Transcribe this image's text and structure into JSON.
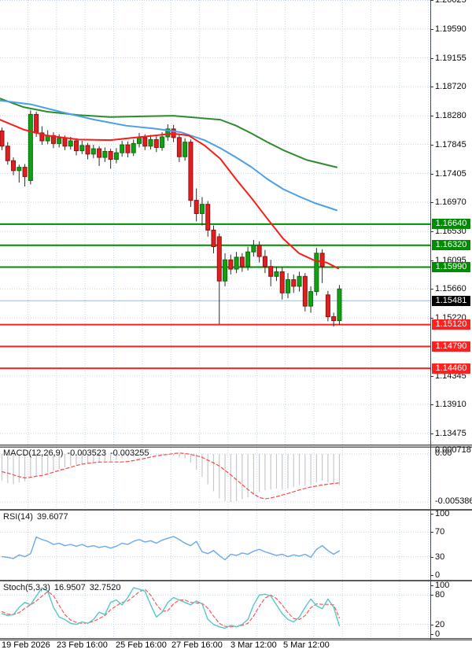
{
  "colors": {
    "grid": "#c3d5ea",
    "candle_up": "#14a014",
    "candle_up_border": "#0a6e0a",
    "candle_down": "#e02020",
    "candle_down_border": "#8f1010",
    "wick": "#2b2b2b",
    "ma_slow_green": "#2d8c2d",
    "ma_mid_blue": "#4aa0e8",
    "ma_fast_red": "#ff1a1a",
    "level_green": "#008c00",
    "level_red": "#ff2020",
    "current_price_line": "#9db8d2",
    "badge_black": "#000000",
    "macd_hist": "#c8c8c8",
    "macd_signal": "#ff4545",
    "rsi_line": "#6aaae8",
    "stoch_k": "#55c8c8",
    "stoch_d": "#ff5555"
  },
  "indicators": {
    "macd": {
      "name": "MACD(12,26,9)",
      "value_main": "-0.003523",
      "value_signal": "-0.003255",
      "scale_max": "0.000718",
      "scale_zero": "0.00",
      "scale_min": "-0.005386"
    },
    "rsi": {
      "name": "RSI(14)",
      "value": "39.6077",
      "scale": [
        "100",
        "70",
        "30",
        "0"
      ]
    },
    "stoch": {
      "name": "Stoch(5,3,3)",
      "value_k": "16.9507",
      "value_d": "32.7520",
      "scale": [
        "100",
        "80",
        "20",
        "0"
      ]
    }
  },
  "chart_data": {
    "type": "candlestick",
    "title": "",
    "x_labels": [
      "19 Feb 2026",
      "23 Feb 16:00",
      "25 Feb 16:00",
      "27 Feb 16:00",
      "3 Mar 12:00",
      "5 Mar 12:00"
    ],
    "price_axis": {
      "ticks": [
        "1.20025",
        "1.19590",
        "1.19155",
        "1.18720",
        "1.18280",
        "1.17845",
        "1.17405",
        "1.16970",
        "1.16530",
        "1.16095",
        "1.15660",
        "1.15220",
        "1.14345",
        "1.13910",
        "1.13475"
      ],
      "badges": [
        {
          "value": "1.16640",
          "type": "green"
        },
        {
          "value": "1.16320",
          "type": "green"
        },
        {
          "value": "1.15990",
          "type": "green"
        },
        {
          "value": "1.15481",
          "type": "black"
        },
        {
          "value": "1.15120",
          "type": "red"
        },
        {
          "value": "1.14790",
          "type": "red"
        },
        {
          "value": "1.14460",
          "type": "red"
        }
      ]
    },
    "levels": {
      "green": [
        1.1664,
        1.1632,
        1.1599
      ],
      "red": [
        1.1512,
        1.1479,
        1.1446
      ],
      "current": 1.15481
    },
    "candles": [
      [
        1.1805,
        1.181,
        1.1776,
        1.1782
      ],
      [
        1.1782,
        1.1788,
        1.1754,
        1.176
      ],
      [
        1.176,
        1.1765,
        1.1738,
        1.1745
      ],
      [
        1.1745,
        1.1754,
        1.1727,
        1.175
      ],
      [
        1.175,
        1.1755,
        1.1721,
        1.1736
      ],
      [
        1.173,
        1.1836,
        1.1724,
        1.183
      ],
      [
        1.183,
        1.1834,
        1.1796,
        1.1802
      ],
      [
        1.1802,
        1.1812,
        1.1784,
        1.179
      ],
      [
        1.179,
        1.1806,
        1.1785,
        1.1798
      ],
      [
        1.1798,
        1.1803,
        1.1779,
        1.1786
      ],
      [
        1.1786,
        1.18,
        1.178,
        1.1794
      ],
      [
        1.1794,
        1.1798,
        1.1776,
        1.1782
      ],
      [
        1.1782,
        1.1796,
        1.1777,
        1.179
      ],
      [
        1.179,
        1.1794,
        1.1768,
        1.1775
      ],
      [
        1.1775,
        1.179,
        1.177,
        1.1783
      ],
      [
        1.1783,
        1.1787,
        1.1762,
        1.177
      ],
      [
        1.177,
        1.1784,
        1.1764,
        1.1778
      ],
      [
        1.1778,
        1.1782,
        1.1752,
        1.1765
      ],
      [
        1.1765,
        1.178,
        1.1758,
        1.1774
      ],
      [
        1.1774,
        1.1778,
        1.1748,
        1.1762
      ],
      [
        1.1762,
        1.1779,
        1.1756,
        1.1772
      ],
      [
        1.1772,
        1.179,
        1.1766,
        1.1784
      ],
      [
        1.1784,
        1.1789,
        1.1765,
        1.1772
      ],
      [
        1.1772,
        1.1792,
        1.1767,
        1.1786
      ],
      [
        1.1786,
        1.1802,
        1.178,
        1.1795
      ],
      [
        1.1795,
        1.18,
        1.1776,
        1.1782
      ],
      [
        1.1782,
        1.1799,
        1.1777,
        1.1792
      ],
      [
        1.1792,
        1.1797,
        1.1773,
        1.178
      ],
      [
        1.178,
        1.1803,
        1.1775,
        1.1796
      ],
      [
        1.1796,
        1.1815,
        1.179,
        1.1808
      ],
      [
        1.1808,
        1.1814,
        1.1788,
        1.1795
      ],
      [
        1.1795,
        1.18,
        1.1758,
        1.1766
      ],
      [
        1.1766,
        1.1794,
        1.176,
        1.1788
      ],
      [
        1.1788,
        1.1792,
        1.169,
        1.17
      ],
      [
        1.17,
        1.1718,
        1.1668,
        1.168
      ],
      [
        1.168,
        1.1705,
        1.1662,
        1.1694
      ],
      [
        1.1694,
        1.1699,
        1.1645,
        1.1655
      ],
      [
        1.1655,
        1.1662,
        1.162,
        1.163
      ],
      [
        1.1645,
        1.165,
        1.1513,
        1.1578
      ],
      [
        1.1578,
        1.162,
        1.157,
        1.161
      ],
      [
        1.161,
        1.1618,
        1.1588,
        1.1596
      ],
      [
        1.1596,
        1.1622,
        1.159,
        1.1614
      ],
      [
        1.1614,
        1.162,
        1.1592,
        1.16
      ],
      [
        1.16,
        1.163,
        1.1594,
        1.1622
      ],
      [
        1.1622,
        1.164,
        1.1615,
        1.1632
      ],
      [
        1.1632,
        1.1638,
        1.1606,
        1.1615
      ],
      [
        1.1615,
        1.1625,
        1.159,
        1.16
      ],
      [
        1.16,
        1.161,
        1.157,
        1.1585
      ],
      [
        1.1585,
        1.16,
        1.1578,
        1.1592
      ],
      [
        1.1592,
        1.1598,
        1.155,
        1.156
      ],
      [
        1.156,
        1.159,
        1.1552,
        1.158
      ],
      [
        1.158,
        1.1588,
        1.156,
        1.157
      ],
      [
        1.157,
        1.1592,
        1.1562,
        1.1585
      ],
      [
        1.1585,
        1.159,
        1.1532,
        1.154
      ],
      [
        1.154,
        1.157,
        1.153,
        1.1562
      ],
      [
        1.1562,
        1.1628,
        1.1556,
        1.162
      ],
      [
        1.162,
        1.1626,
        1.1575,
        1.16
      ],
      [
        1.1557,
        1.1563,
        1.1517,
        1.1524
      ],
      [
        1.1524,
        1.153,
        1.1509,
        1.1518
      ],
      [
        1.1518,
        1.1572,
        1.1512,
        1.1566
      ]
    ],
    "ma": {
      "slow_green": [
        [
          0,
          1.1854
        ],
        [
          30,
          1.1841
        ],
        [
          60,
          1.1834
        ],
        [
          100,
          1.1829
        ],
        [
          140,
          1.1826
        ],
        [
          180,
          1.1827
        ],
        [
          220,
          1.1828
        ],
        [
          260,
          1.1824
        ],
        [
          280,
          1.1822
        ],
        [
          300,
          1.1813
        ],
        [
          320,
          1.1801
        ],
        [
          340,
          1.1788
        ],
        [
          360,
          1.1776
        ],
        [
          390,
          1.1761
        ],
        [
          428,
          1.175
        ]
      ],
      "mid_blue": [
        [
          0,
          1.1851
        ],
        [
          40,
          1.1845
        ],
        [
          80,
          1.1833
        ],
        [
          120,
          1.1822
        ],
        [
          160,
          1.1813
        ],
        [
          200,
          1.1808
        ],
        [
          230,
          1.1803
        ],
        [
          260,
          1.1791
        ],
        [
          280,
          1.1779
        ],
        [
          300,
          1.1765
        ],
        [
          320,
          1.175
        ],
        [
          340,
          1.1732
        ],
        [
          360,
          1.1717
        ],
        [
          380,
          1.1706
        ],
        [
          400,
          1.1696
        ],
        [
          428,
          1.1685
        ]
      ],
      "fast_red": [
        [
          0,
          1.1822
        ],
        [
          30,
          1.1807
        ],
        [
          60,
          1.1798
        ],
        [
          100,
          1.1792
        ],
        [
          140,
          1.1791
        ],
        [
          180,
          1.1796
        ],
        [
          220,
          1.1801
        ],
        [
          240,
          1.1798
        ],
        [
          260,
          1.1783
        ],
        [
          280,
          1.1763
        ],
        [
          300,
          1.1732
        ],
        [
          320,
          1.1703
        ],
        [
          340,
          1.1672
        ],
        [
          360,
          1.1642
        ],
        [
          380,
          1.162
        ],
        [
          400,
          1.1609
        ],
        [
          415,
          1.1606
        ],
        [
          430,
          1.1597
        ]
      ]
    },
    "macd": {
      "range": [
        -0.005386,
        0.000718
      ],
      "hist": [
        -0.003,
        -0.0033,
        -0.0034,
        -0.0032,
        -0.0031,
        -0.0026,
        -0.0024,
        -0.0023,
        -0.0021,
        -0.0019,
        -0.0017,
        -0.0015,
        -0.0013,
        -0.0012,
        -0.0011,
        -0.001,
        -0.0009,
        -0.0009,
        -0.0008,
        -0.0008,
        -0.0007,
        -0.0005,
        -0.0004,
        -0.0003,
        -0.0002,
        -0.0002,
        -0.0001,
        -0.0001,
        -0.0001,
        -0.0001,
        -0.0002,
        -0.0004,
        -0.0005,
        -0.001,
        -0.0018,
        -0.0026,
        -0.0034,
        -0.0042,
        -0.005,
        -0.0053,
        -0.0054,
        -0.0053,
        -0.0051,
        -0.0049,
        -0.0046,
        -0.0043,
        -0.0041,
        -0.004,
        -0.0039,
        -0.004,
        -0.0039,
        -0.0037,
        -0.0035,
        -0.0036,
        -0.0035,
        -0.0032,
        -0.003,
        -0.0032,
        -0.0034,
        -0.003523
      ],
      "signal": [
        -0.002,
        -0.00215,
        -0.00235,
        -0.00255,
        -0.0027,
        -0.00262,
        -0.0025,
        -0.00242,
        -0.00225,
        -0.00205,
        -0.00185,
        -0.00168,
        -0.0015,
        -0.0013,
        -0.00115,
        -0.00105,
        -0.00098,
        -0.00092,
        -0.0009,
        -0.0009,
        -0.0009,
        -0.0009,
        -0.00085,
        -0.00075,
        -0.00062,
        -0.0005,
        -0.00035,
        -0.00022,
        -0.00012,
        -5e-05,
        5e-05,
        0.0001,
        5e-05,
        -5e-05,
        -0.0002,
        -0.00038,
        -0.0007,
        -0.001,
        -0.00135,
        -0.00185,
        -0.00235,
        -0.0029,
        -0.00345,
        -0.004,
        -0.0045,
        -0.0049,
        -0.00505,
        -0.00495,
        -0.0048,
        -0.00462,
        -0.00445,
        -0.00425,
        -0.00405,
        -0.00388,
        -0.00372,
        -0.0036,
        -0.00348,
        -0.0034,
        -0.00332,
        -0.003255
      ]
    },
    "rsi": {
      "levels": [
        70,
        30
      ],
      "values": [
        30,
        29,
        27,
        33,
        30,
        35,
        62,
        58,
        55,
        50,
        52,
        48,
        50,
        47,
        50,
        46,
        48,
        45,
        47,
        44,
        47,
        52,
        50,
        55,
        58,
        54,
        56,
        52,
        57,
        60,
        63,
        58,
        52,
        48,
        55,
        38,
        35,
        40,
        32,
        25,
        34,
        32,
        36,
        34,
        39,
        42,
        38,
        35,
        32,
        34,
        30,
        33,
        31,
        34,
        29,
        42,
        48,
        40,
        34,
        39.6
      ]
    },
    "stoch": {
      "levels": [
        80,
        20
      ],
      "k": [
        42,
        38,
        40,
        55,
        65,
        60,
        78,
        95,
        88,
        55,
        35,
        30,
        22,
        20,
        25,
        22,
        30,
        45,
        40,
        65,
        70,
        60,
        75,
        95,
        92,
        88,
        60,
        35,
        45,
        65,
        75,
        70,
        65,
        60,
        68,
        62,
        30,
        20,
        15,
        12,
        18,
        15,
        20,
        30,
        60,
        80,
        82,
        78,
        60,
        42,
        30,
        25,
        35,
        55,
        72,
        58,
        52,
        72,
        55,
        17
      ],
      "d": [
        46,
        41,
        40,
        44,
        53,
        60,
        68,
        78,
        87,
        79,
        59,
        40,
        29,
        24,
        22,
        23,
        26,
        32,
        38,
        50,
        58,
        65,
        68,
        77,
        87,
        92,
        80,
        61,
        47,
        48,
        62,
        70,
        70,
        65,
        64,
        63,
        53,
        37,
        22,
        16,
        15,
        15,
        18,
        22,
        37,
        57,
        74,
        80,
        73,
        60,
        44,
        32,
        30,
        38,
        54,
        62,
        61,
        61,
        60,
        33
      ]
    }
  }
}
